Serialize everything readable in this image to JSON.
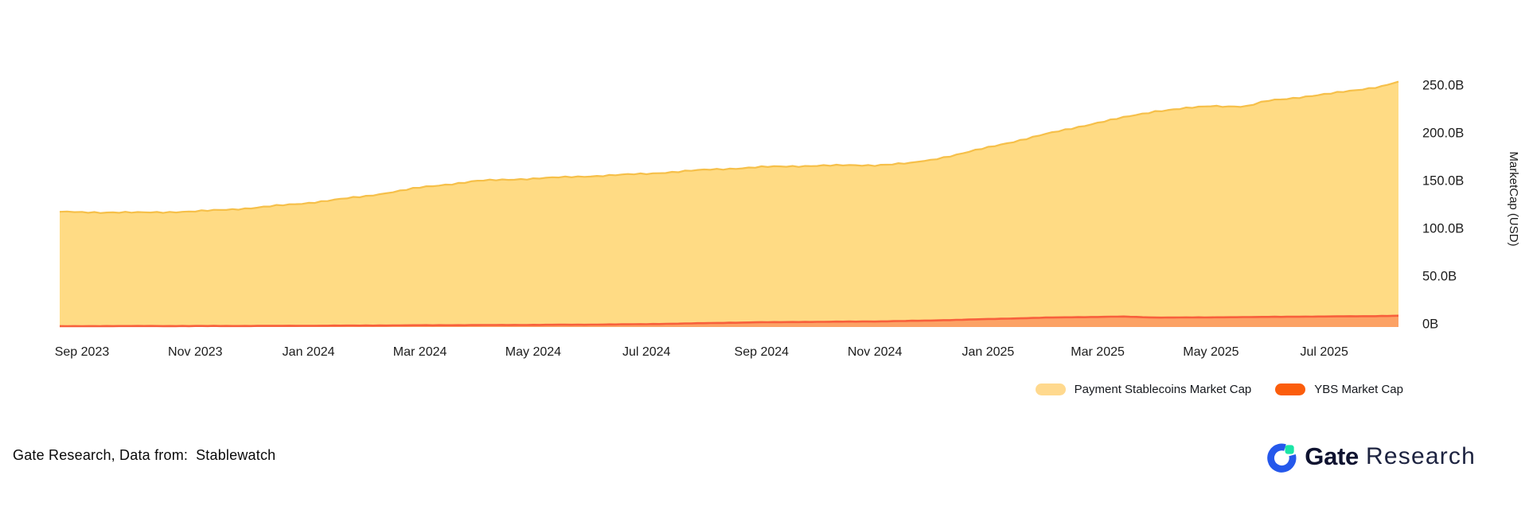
{
  "chart_data": {
    "type": "area",
    "title": "",
    "xlabel": "",
    "ylabel": "MarketCap (USD)",
    "grid": false,
    "legend_position": "bottom-right",
    "ylim": [
      0,
      260
    ],
    "x_range": [
      "2023-08-20",
      "2025-08-10"
    ],
    "y_ticks": [
      {
        "v": 0,
        "label": "0B"
      },
      {
        "v": 50,
        "label": "50.0B"
      },
      {
        "v": 100,
        "label": "100.0B"
      },
      {
        "v": 150,
        "label": "150.0B"
      },
      {
        "v": 200,
        "label": "200.0B"
      },
      {
        "v": 250,
        "label": "250.0B"
      }
    ],
    "x_ticks": [
      {
        "date": "2023-09-01",
        "label": "Sep 2023"
      },
      {
        "date": "2023-11-01",
        "label": "Nov 2023"
      },
      {
        "date": "2024-01-01",
        "label": "Jan 2024"
      },
      {
        "date": "2024-03-01",
        "label": "Mar 2024"
      },
      {
        "date": "2024-05-01",
        "label": "May 2024"
      },
      {
        "date": "2024-07-01",
        "label": "Jul 2024"
      },
      {
        "date": "2024-09-01",
        "label": "Sep 2024"
      },
      {
        "date": "2024-11-01",
        "label": "Nov 2024"
      },
      {
        "date": "2025-01-01",
        "label": "Jan 2025"
      },
      {
        "date": "2025-03-01",
        "label": "Mar 2025"
      },
      {
        "date": "2025-05-01",
        "label": "May 2025"
      },
      {
        "date": "2025-07-01",
        "label": "Jul 2025"
      }
    ],
    "series": [
      {
        "id": "payment-stablecoins",
        "name": "Payment Stablecoins Market Cap",
        "unit": "B USD",
        "color_fill": "#FFDB84",
        "color_stroke": "#F6C04A",
        "points": [
          {
            "date": "2023-08-20",
            "value": 120.5
          },
          {
            "date": "2023-09-01",
            "value": 120.3
          },
          {
            "date": "2023-10-01",
            "value": 119.8
          },
          {
            "date": "2023-11-01",
            "value": 121.0
          },
          {
            "date": "2023-12-01",
            "value": 124.5
          },
          {
            "date": "2024-01-01",
            "value": 130.0
          },
          {
            "date": "2024-02-01",
            "value": 137.0
          },
          {
            "date": "2024-03-01",
            "value": 146.0
          },
          {
            "date": "2024-04-01",
            "value": 153.0
          },
          {
            "date": "2024-05-01",
            "value": 155.5
          },
          {
            "date": "2024-06-01",
            "value": 158.0
          },
          {
            "date": "2024-07-01",
            "value": 160.5
          },
          {
            "date": "2024-08-01",
            "value": 164.5
          },
          {
            "date": "2024-09-01",
            "value": 167.5
          },
          {
            "date": "2024-10-01",
            "value": 169.0
          },
          {
            "date": "2024-11-01",
            "value": 169.5
          },
          {
            "date": "2024-11-20",
            "value": 171.5
          },
          {
            "date": "2024-12-01",
            "value": 175.0
          },
          {
            "date": "2024-12-15",
            "value": 180.5
          },
          {
            "date": "2025-01-01",
            "value": 188.0
          },
          {
            "date": "2025-02-01",
            "value": 202.0
          },
          {
            "date": "2025-03-01",
            "value": 214.0
          },
          {
            "date": "2025-04-01",
            "value": 226.0
          },
          {
            "date": "2025-05-01",
            "value": 231.5
          },
          {
            "date": "2025-05-20",
            "value": 231.0
          },
          {
            "date": "2025-06-01",
            "value": 237.0
          },
          {
            "date": "2025-07-01",
            "value": 243.5
          },
          {
            "date": "2025-08-01",
            "value": 252.0
          },
          {
            "date": "2025-08-10",
            "value": 257.0
          }
        ]
      },
      {
        "id": "ybs",
        "name": "YBS Market Cap",
        "unit": "B USD",
        "color_fill": "#FCA265",
        "color_stroke": "#F8603C",
        "points": [
          {
            "date": "2023-08-20",
            "value": 0.8
          },
          {
            "date": "2023-09-01",
            "value": 0.9
          },
          {
            "date": "2023-10-01",
            "value": 1.0
          },
          {
            "date": "2023-11-01",
            "value": 1.0
          },
          {
            "date": "2023-12-01",
            "value": 1.1
          },
          {
            "date": "2024-01-01",
            "value": 1.3
          },
          {
            "date": "2024-02-01",
            "value": 1.5
          },
          {
            "date": "2024-03-01",
            "value": 1.8
          },
          {
            "date": "2024-04-01",
            "value": 2.0
          },
          {
            "date": "2024-05-01",
            "value": 2.2
          },
          {
            "date": "2024-06-01",
            "value": 2.5
          },
          {
            "date": "2024-07-01",
            "value": 3.0
          },
          {
            "date": "2024-08-01",
            "value": 4.0
          },
          {
            "date": "2024-09-01",
            "value": 5.0
          },
          {
            "date": "2024-10-01",
            "value": 5.4
          },
          {
            "date": "2024-11-01",
            "value": 5.8
          },
          {
            "date": "2024-12-01",
            "value": 6.8
          },
          {
            "date": "2025-01-01",
            "value": 8.3
          },
          {
            "date": "2025-02-01",
            "value": 9.8
          },
          {
            "date": "2025-03-01",
            "value": 10.6
          },
          {
            "date": "2025-03-15",
            "value": 10.9
          },
          {
            "date": "2025-04-01",
            "value": 9.9
          },
          {
            "date": "2025-05-01",
            "value": 10.1
          },
          {
            "date": "2025-06-01",
            "value": 10.6
          },
          {
            "date": "2025-07-01",
            "value": 11.0
          },
          {
            "date": "2025-08-01",
            "value": 11.5
          },
          {
            "date": "2025-08-10",
            "value": 11.8
          }
        ]
      }
    ]
  },
  "legend": {
    "items": [
      {
        "label": "Payment Stablecoins Market Cap",
        "color": "#FFD98E"
      },
      {
        "label": "YBS Market Cap",
        "color": "#FB5D0C"
      }
    ]
  },
  "footer": {
    "source_prefix": "Gate Research, Data from:",
    "source_name": "Stablewatch"
  },
  "branding": {
    "wordmark_bold": "Gate",
    "wordmark_regular": "Research",
    "logo_blue": "#2558EB",
    "logo_green": "#1BE5A6",
    "text_color": "#1c1c1c"
  }
}
